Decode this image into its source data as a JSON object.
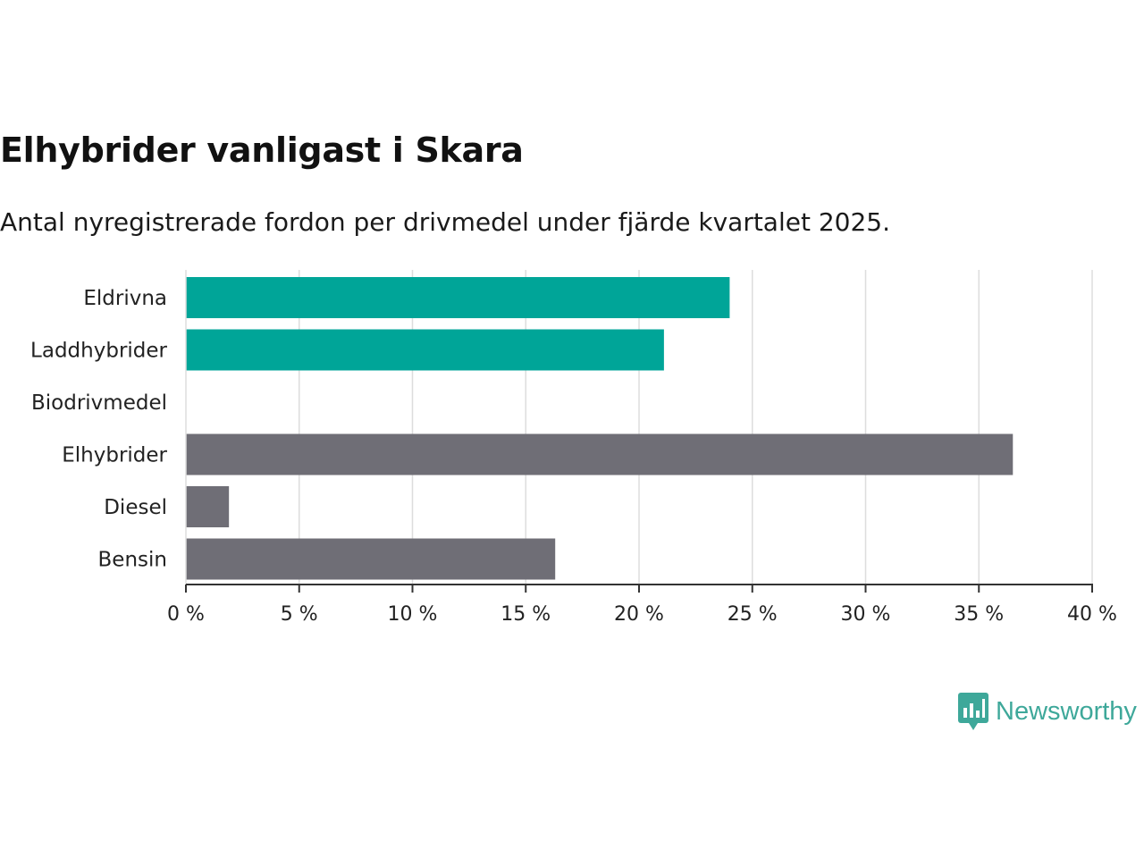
{
  "title": "Elhybrider vanligast i Skara",
  "subtitle": "Antal nyregistrerade fordon per drivmedel under fjärde kvartalet 2025.",
  "brand": {
    "name": "Newsworthy",
    "color": "#3ea89a"
  },
  "colors": {
    "highlight": "#00a598",
    "default": "#6f6e76",
    "grid": "#dddddd",
    "axis": "#333333"
  },
  "chart_data": {
    "type": "bar",
    "orientation": "horizontal",
    "categories": [
      "Eldrivna",
      "Laddhybrider",
      "Biodrivmedel",
      "Elhybrider",
      "Diesel",
      "Bensin"
    ],
    "values": [
      24.0,
      21.1,
      0,
      36.5,
      1.9,
      16.3
    ],
    "highlight": [
      true,
      true,
      false,
      false,
      false,
      false
    ],
    "xlim": [
      0,
      40
    ],
    "xticks": [
      0,
      5,
      10,
      15,
      20,
      25,
      30,
      35,
      40
    ],
    "tick_labels": [
      "0 %",
      "5 %",
      "10 %",
      "15 %",
      "20 %",
      "25 %",
      "30 %",
      "35 %",
      "40 %"
    ],
    "title": "Elhybrider vanligast i Skara",
    "xlabel": "",
    "ylabel": "",
    "grid": true
  }
}
